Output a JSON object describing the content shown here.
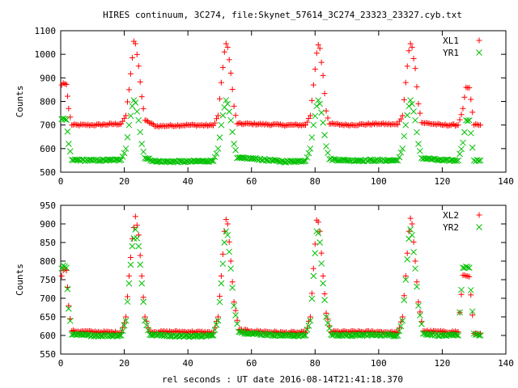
{
  "chart_data": [
    {
      "type": "scatter",
      "title": "HIRES continuum, 3C274, file:Skynet_57614_3C274_23323_23327.cyb.txt",
      "xlabel": "",
      "ylabel": "Counts",
      "xlim": [
        0,
        140
      ],
      "ylim": [
        500,
        1100
      ],
      "xticks": [
        0,
        20,
        40,
        60,
        80,
        100,
        120,
        140
      ],
      "yticks": [
        500,
        600,
        700,
        800,
        900,
        1000,
        1100
      ],
      "grid": false,
      "legend_position": "top-right",
      "series": [
        {
          "name": "XL1",
          "marker": "plus",
          "color": "#ff0000",
          "baseline": 700,
          "peak_centers": [
            23,
            52,
            81,
            110
          ],
          "peak_height": 1055,
          "points": [
            [
              0.3,
              870
            ],
            [
              0.8,
              878
            ],
            [
              1.3,
              875
            ],
            [
              1.8,
              872
            ],
            [
              2.5,
              770
            ],
            [
              3.5,
              700
            ],
            [
              10,
              700
            ],
            [
              19,
              705
            ],
            [
              20.5,
              740
            ],
            [
              21.5,
              850
            ],
            [
              22.5,
              985
            ],
            [
              23,
              1055
            ],
            [
              23.5,
              1045
            ],
            [
              24.5,
              950
            ],
            [
              25.5,
              820
            ],
            [
              26.5,
              720
            ],
            [
              30,
              695
            ],
            [
              40,
              700
            ],
            [
              48,
              698
            ],
            [
              49.5,
              740
            ],
            [
              50.5,
              880
            ],
            [
              51.5,
              1010
            ],
            [
              52,
              1045
            ],
            [
              52.5,
              1030
            ],
            [
              53.5,
              920
            ],
            [
              54.5,
              780
            ],
            [
              55.5,
              705
            ],
            [
              60,
              705
            ],
            [
              70,
              700
            ],
            [
              77,
              700
            ],
            [
              78.5,
              740
            ],
            [
              79.5,
              870
            ],
            [
              80.5,
              1005
            ],
            [
              81,
              1040
            ],
            [
              81.5,
              1025
            ],
            [
              82.5,
              910
            ],
            [
              83.5,
              760
            ],
            [
              84.5,
              705
            ],
            [
              90,
              700
            ],
            [
              100,
              705
            ],
            [
              106,
              702
            ],
            [
              107.5,
              740
            ],
            [
              108.5,
              880
            ],
            [
              109.5,
              1015
            ],
            [
              110,
              1045
            ],
            [
              110.5,
              1030
            ],
            [
              111.5,
              940
            ],
            [
              112.5,
              790
            ],
            [
              113.5,
              710
            ],
            [
              120,
              700
            ],
            [
              125,
              700
            ],
            [
              126.5,
              770
            ],
            [
              127.5,
              860
            ],
            [
              128.5,
              858
            ],
            [
              130,
              700
            ],
            [
              132,
              700
            ]
          ]
        },
        {
          "name": "YR1",
          "marker": "cross",
          "color": "#00c000",
          "baseline": 550,
          "peak_centers": [
            23,
            52,
            81,
            110
          ],
          "peak_height": 805,
          "points": [
            [
              0.3,
              725
            ],
            [
              0.8,
              728
            ],
            [
              1.3,
              725
            ],
            [
              1.8,
              722
            ],
            [
              2.5,
              620
            ],
            [
              3.5,
              552
            ],
            [
              10,
              550
            ],
            [
              19,
              552
            ],
            [
              20.5,
              600
            ],
            [
              21.5,
              700
            ],
            [
              22.5,
              780
            ],
            [
              23,
              805
            ],
            [
              23.5,
              795
            ],
            [
              24.5,
              720
            ],
            [
              25.5,
              620
            ],
            [
              26.5,
              560
            ],
            [
              30,
              545
            ],
            [
              40,
              545
            ],
            [
              48,
              548
            ],
            [
              49.5,
              600
            ],
            [
              50.5,
              700
            ],
            [
              51.5,
              775
            ],
            [
              52,
              805
            ],
            [
              52.5,
              790
            ],
            [
              53.5,
              720
            ],
            [
              54.5,
              620
            ],
            [
              55.5,
              560
            ],
            [
              60,
              558
            ],
            [
              70,
              545
            ],
            [
              77,
              548
            ],
            [
              78.5,
              600
            ],
            [
              79.5,
              700
            ],
            [
              80.5,
              780
            ],
            [
              81,
              805
            ],
            [
              81.5,
              790
            ],
            [
              82.5,
              710
            ],
            [
              83.5,
              610
            ],
            [
              84.5,
              555
            ],
            [
              90,
              550
            ],
            [
              100,
              550
            ],
            [
              106,
              550
            ],
            [
              107.5,
              600
            ],
            [
              108.5,
              700
            ],
            [
              109.5,
              780
            ],
            [
              110,
              805
            ],
            [
              110.5,
              790
            ],
            [
              111.5,
              720
            ],
            [
              112.5,
              620
            ],
            [
              113.5,
              560
            ],
            [
              120,
              550
            ],
            [
              125,
              550
            ],
            [
              126.5,
              625
            ],
            [
              127.5,
              720
            ],
            [
              128.5,
              720
            ],
            [
              130,
              550
            ],
            [
              132,
              550
            ]
          ]
        }
      ]
    },
    {
      "type": "scatter",
      "title": "",
      "xlabel": "rel seconds : UT date 2016-08-14T21:41:18.370",
      "ylabel": "Counts",
      "xlim": [
        0,
        140
      ],
      "ylim": [
        550,
        950
      ],
      "xticks": [
        0,
        20,
        40,
        60,
        80,
        100,
        120,
        140
      ],
      "yticks": [
        550,
        600,
        650,
        700,
        750,
        800,
        850,
        900,
        950
      ],
      "grid": false,
      "legend_position": "top-right",
      "series": [
        {
          "name": "XL2",
          "marker": "plus",
          "color": "#ff0000",
          "baseline": 605,
          "peak_centers": [
            23.5,
            52,
            80.5,
            110
          ],
          "peak_height": 920,
          "points": [
            [
              0.3,
              760
            ],
            [
              0.8,
              775
            ],
            [
              1.3,
              778
            ],
            [
              1.8,
              775
            ],
            [
              2.5,
              680
            ],
            [
              3.5,
              612
            ],
            [
              10,
              610
            ],
            [
              19,
              608
            ],
            [
              20.5,
              650
            ],
            [
              21.5,
              760
            ],
            [
              22.5,
              860
            ],
            [
              23.5,
              920
            ],
            [
              24.5,
              870
            ],
            [
              25.5,
              760
            ],
            [
              26.5,
              650
            ],
            [
              28,
              610
            ],
            [
              40,
              610
            ],
            [
              48,
              608
            ],
            [
              49.5,
              650
            ],
            [
              50.5,
              760
            ],
            [
              51.5,
              880
            ],
            [
              52,
              912
            ],
            [
              52.5,
              900
            ],
            [
              53.5,
              800
            ],
            [
              54.5,
              690
            ],
            [
              56,
              615
            ],
            [
              60,
              612
            ],
            [
              70,
              608
            ],
            [
              77,
              608
            ],
            [
              78.5,
              650
            ],
            [
              79.5,
              780
            ],
            [
              80.5,
              910
            ],
            [
              81,
              905
            ],
            [
              81.5,
              880
            ],
            [
              82.5,
              760
            ],
            [
              83.5,
              660
            ],
            [
              85,
              610
            ],
            [
              90,
              610
            ],
            [
              100,
              610
            ],
            [
              106,
              608
            ],
            [
              107.5,
              650
            ],
            [
              108.5,
              760
            ],
            [
              109.5,
              880
            ],
            [
              110,
              915
            ],
            [
              110.5,
              900
            ],
            [
              111.5,
              800
            ],
            [
              112.5,
              690
            ],
            [
              114,
              612
            ],
            [
              120,
              610
            ],
            [
              125,
              610
            ],
            [
              126.5,
              762
            ],
            [
              127.5,
              760
            ],
            [
              128.5,
              758
            ],
            [
              130,
              605
            ],
            [
              132,
              605
            ]
          ]
        },
        {
          "name": "YR2",
          "marker": "cross",
          "color": "#00c000",
          "baseline": 600,
          "peak_centers": [
            23.5,
            52,
            80.5,
            110
          ],
          "peak_height": 885,
          "points": [
            [
              0.3,
              780
            ],
            [
              0.8,
              788
            ],
            [
              1.3,
              785
            ],
            [
              1.8,
              782
            ],
            [
              2.5,
              672
            ],
            [
              3.5,
              602
            ],
            [
              10,
              600
            ],
            [
              19,
              600
            ],
            [
              20.5,
              640
            ],
            [
              21.5,
              740
            ],
            [
              22.5,
              840
            ],
            [
              23.5,
              885
            ],
            [
              24.5,
              840
            ],
            [
              25.5,
              740
            ],
            [
              26.5,
              640
            ],
            [
              28,
              602
            ],
            [
              40,
              598
            ],
            [
              48,
              600
            ],
            [
              49.5,
              640
            ],
            [
              50.5,
              740
            ],
            [
              51.5,
              850
            ],
            [
              52,
              880
            ],
            [
              52.5,
              870
            ],
            [
              53.5,
              780
            ],
            [
              54.5,
              680
            ],
            [
              56,
              610
            ],
            [
              60,
              605
            ],
            [
              70,
              600
            ],
            [
              77,
              600
            ],
            [
              78.5,
              640
            ],
            [
              79.5,
              760
            ],
            [
              80.5,
              880
            ],
            [
              81,
              875
            ],
            [
              81.5,
              850
            ],
            [
              82.5,
              740
            ],
            [
              83.5,
              650
            ],
            [
              85,
              602
            ],
            [
              90,
              600
            ],
            [
              100,
              602
            ],
            [
              106,
              600
            ],
            [
              107.5,
              640
            ],
            [
              108.5,
              750
            ],
            [
              109.5,
              860
            ],
            [
              110,
              885
            ],
            [
              110.5,
              870
            ],
            [
              111.5,
              780
            ],
            [
              112.5,
              680
            ],
            [
              114,
              605
            ],
            [
              120,
              600
            ],
            [
              125,
              600
            ],
            [
              126.5,
              782
            ],
            [
              127.5,
              785
            ],
            [
              128.5,
              782
            ],
            [
              130,
              605
            ],
            [
              132,
              600
            ]
          ]
        }
      ]
    }
  ]
}
